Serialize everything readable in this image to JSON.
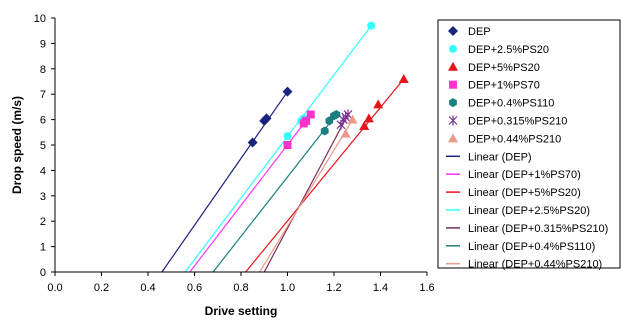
{
  "chart_data": {
    "type": "scatter",
    "xlabel": "Drive setting",
    "ylabel": "Drop speed (m/s)",
    "xlim": [
      0.0,
      1.6
    ],
    "ylim": [
      0,
      10
    ],
    "x_ticks": [
      "0.0",
      "0.2",
      "0.4",
      "0.6",
      "0.8",
      "1.0",
      "1.2",
      "1.4",
      "1.6"
    ],
    "y_ticks": [
      "0",
      "1",
      "2",
      "3",
      "4",
      "5",
      "6",
      "7",
      "8",
      "9",
      "10"
    ],
    "grid": false,
    "legend_position": "right",
    "series": [
      {
        "name": "DEP",
        "marker": "diamond",
        "color": "#1a237e",
        "points": [
          {
            "x": 0.85,
            "y": 5.1
          },
          {
            "x": 0.9,
            "y": 5.95
          },
          {
            "x": 0.91,
            "y": 6.05
          },
          {
            "x": 1.0,
            "y": 7.1
          }
        ]
      },
      {
        "name": "DEP+2.5%PS20",
        "marker": "circle",
        "color": "#33ffff",
        "points": [
          {
            "x": 1.0,
            "y": 5.35
          },
          {
            "x": 1.06,
            "y": 5.95
          },
          {
            "x": 1.07,
            "y": 6.05
          },
          {
            "x": 1.36,
            "y": 9.7
          }
        ]
      },
      {
        "name": "DEP+5%PS20",
        "marker": "triangle",
        "color": "#e8141a",
        "points": [
          {
            "x": 1.33,
            "y": 5.75
          },
          {
            "x": 1.35,
            "y": 6.05
          },
          {
            "x": 1.39,
            "y": 6.6
          },
          {
            "x": 1.5,
            "y": 7.6
          }
        ]
      },
      {
        "name": "DEP+1%PS70",
        "marker": "square",
        "color": "#ff33cc",
        "points": [
          {
            "x": 1.0,
            "y": 5.0
          },
          {
            "x": 1.07,
            "y": 5.85
          },
          {
            "x": 1.08,
            "y": 5.95
          },
          {
            "x": 1.1,
            "y": 6.2
          }
        ]
      },
      {
        "name": "DEP+0.4%PS110",
        "marker": "hexagon",
        "color": "#1a8080",
        "points": [
          {
            "x": 1.16,
            "y": 5.55
          },
          {
            "x": 1.18,
            "y": 5.95
          },
          {
            "x": 1.2,
            "y": 6.15
          },
          {
            "x": 1.21,
            "y": 6.2
          }
        ]
      },
      {
        "name": "DEP+0.315%PS210",
        "marker": "asterisk",
        "color": "#7b3294",
        "points": [
          {
            "x": 1.23,
            "y": 5.8
          },
          {
            "x": 1.24,
            "y": 6.0
          },
          {
            "x": 1.25,
            "y": 6.1
          },
          {
            "x": 1.26,
            "y": 6.2
          }
        ]
      },
      {
        "name": "DEP+0.44%PS210",
        "marker": "triangle",
        "color": "#ee9a8a",
        "points": [
          {
            "x": 1.25,
            "y": 5.45
          },
          {
            "x": 1.28,
            "y": 6.0
          }
        ]
      }
    ],
    "trendlines": [
      {
        "name": "Linear (DEP)",
        "color": "#1a237e",
        "x": [
          0.46,
          1.0
        ],
        "y": [
          0,
          7.1
        ]
      },
      {
        "name": "Linear (DEP+1%PS70)",
        "color": "#ff33ff",
        "x": [
          0.58,
          1.1
        ],
        "y": [
          0,
          6.2
        ]
      },
      {
        "name": "Linear (DEP+5%PS20)",
        "color": "#e8141a",
        "x": [
          0.82,
          1.5
        ],
        "y": [
          0,
          7.6
        ]
      },
      {
        "name": "Linear (DEP+2.5%PS20)",
        "color": "#33ffff",
        "x": [
          0.56,
          1.36
        ],
        "y": [
          0,
          9.7
        ]
      },
      {
        "name": "Linear (DEP+0.315%PS210)",
        "color": "#7b2d5a",
        "x": [
          0.9,
          1.26
        ],
        "y": [
          0,
          6.2
        ]
      },
      {
        "name": "Linear (DEP+0.4%PS110)",
        "color": "#1a8080",
        "x": [
          0.68,
          1.21
        ],
        "y": [
          0,
          6.2
        ]
      },
      {
        "name": "Linear (DEP+0.44%PS210)",
        "color": "#ee9a8a",
        "x": [
          0.88,
          1.28
        ],
        "y": [
          0,
          6.0
        ]
      }
    ]
  }
}
